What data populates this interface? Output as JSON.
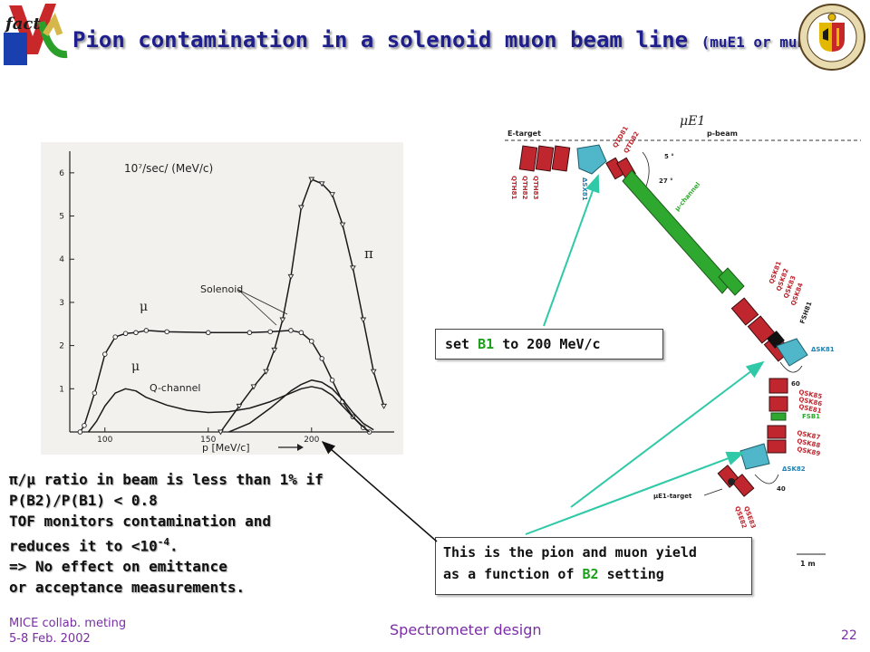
{
  "title": {
    "main": "Pion contamination in a solenoid muon beam line",
    "sub": "(muE1 or muE4)"
  },
  "logo_left": {
    "letters": "fact",
    "icon": "fact-logo-icon"
  },
  "logo_right": {
    "icon": "geneva-seal-icon"
  },
  "plot": {
    "chart_data": {
      "type": "line",
      "x_ticks": [
        "100",
        "150",
        "200"
      ],
      "y_ticks": [
        "1",
        "2",
        "3",
        "4",
        "5",
        "6"
      ],
      "xlabel": "p [MeV/c]",
      "ylabel": "10⁷/sec/ (MeV/c)",
      "xlim": [
        83,
        240
      ],
      "ylim": [
        0,
        6.5
      ],
      "annotations": [
        "Solenoid",
        "Q-channel",
        "μ",
        "μ",
        "π"
      ],
      "series": [
        {
          "name": "π solenoid",
          "x": [
            156,
            165,
            172,
            178,
            182,
            186,
            190,
            195,
            200,
            205,
            210,
            215,
            220,
            225,
            230,
            235
          ],
          "y": [
            0,
            0.6,
            1.05,
            1.4,
            1.9,
            2.6,
            3.6,
            5.2,
            5.85,
            5.75,
            5.5,
            4.8,
            3.8,
            2.6,
            1.4,
            0.6
          ]
        },
        {
          "name": "μ solenoid",
          "x": [
            88,
            90,
            95,
            100,
            105,
            110,
            115,
            120,
            130,
            150,
            170,
            180,
            190,
            195,
            200,
            205,
            210,
            215,
            220,
            225,
            228
          ],
          "y": [
            0,
            0.15,
            0.9,
            1.8,
            2.2,
            2.28,
            2.3,
            2.35,
            2.32,
            2.3,
            2.3,
            2.32,
            2.35,
            2.3,
            2.1,
            1.7,
            1.2,
            0.7,
            0.35,
            0.1,
            0
          ]
        },
        {
          "name": "π Q-channel",
          "x": [
            160,
            170,
            180,
            190,
            195,
            200,
            205,
            210,
            215,
            220,
            225,
            230
          ],
          "y": [
            0,
            0.2,
            0.55,
            0.95,
            1.1,
            1.2,
            1.15,
            1.0,
            0.75,
            0.45,
            0.2,
            0.05
          ]
        },
        {
          "name": "μ Q-channel",
          "x": [
            92,
            96,
            100,
            105,
            110,
            115,
            120,
            130,
            140,
            150,
            160,
            170,
            180,
            190,
            195,
            200,
            205,
            210,
            215,
            220,
            225,
            228
          ],
          "y": [
            0,
            0.25,
            0.6,
            0.9,
            1.0,
            0.95,
            0.8,
            0.62,
            0.5,
            0.45,
            0.47,
            0.55,
            0.7,
            0.9,
            1.0,
            1.05,
            1.0,
            0.85,
            0.6,
            0.35,
            0.12,
            0
          ]
        }
      ]
    }
  },
  "diagram": {
    "title": "μE1",
    "labels": [
      "E-target",
      "p-beam",
      "μ-channel",
      "μE1-target",
      "1 m",
      "5 °",
      "27 °",
      "60",
      "40",
      "ΔSK81",
      "ΔSK82",
      "ΔSX81",
      "QTH81",
      "QTH82",
      "QTH83",
      "QTD81",
      "QTD82",
      "QSK81",
      "QSK82",
      "QSK83",
      "QSK84",
      "QSK85",
      "QSK86",
      "QSK87",
      "QSK88",
      "QSK89",
      "QSE81",
      "QSE82",
      "QSE83",
      "FSH81",
      "FSB1"
    ]
  },
  "callout_b1": {
    "text_a": "set ",
    "hl": "B1",
    "text_b": " to 200 MeV/c"
  },
  "callout_b2": {
    "line1": "This is the pion and muon yield",
    "line2_a": "as a function of ",
    "hl": "B2",
    "line2_b": " setting"
  },
  "left_text": {
    "line1": "π/μ ratio in beam is less than 1% if",
    "line2": "P(B2)/P(B1) < 0.8",
    "line3": "TOF monitors contamination and",
    "line4a": "reduces it to <10",
    "line4sup": "-4",
    "line4b": ".",
    "line5": "=> No effect on emittance",
    "line6": "or acceptance measurements."
  },
  "footer": {
    "left1": "MICE collab. meting",
    "left2": "5-8 Feb. 2002",
    "center": "Spectrometer design",
    "right": "22"
  },
  "colors": {
    "title": "#1e1e8c",
    "footer": "#7a2ea5",
    "highlight": "#1aa01a",
    "arrow": "#2fc9a8",
    "magnet_red": "#c0262e",
    "magnet_green": "#2fa82f",
    "magnet_cyan": "#4fb7c9"
  }
}
